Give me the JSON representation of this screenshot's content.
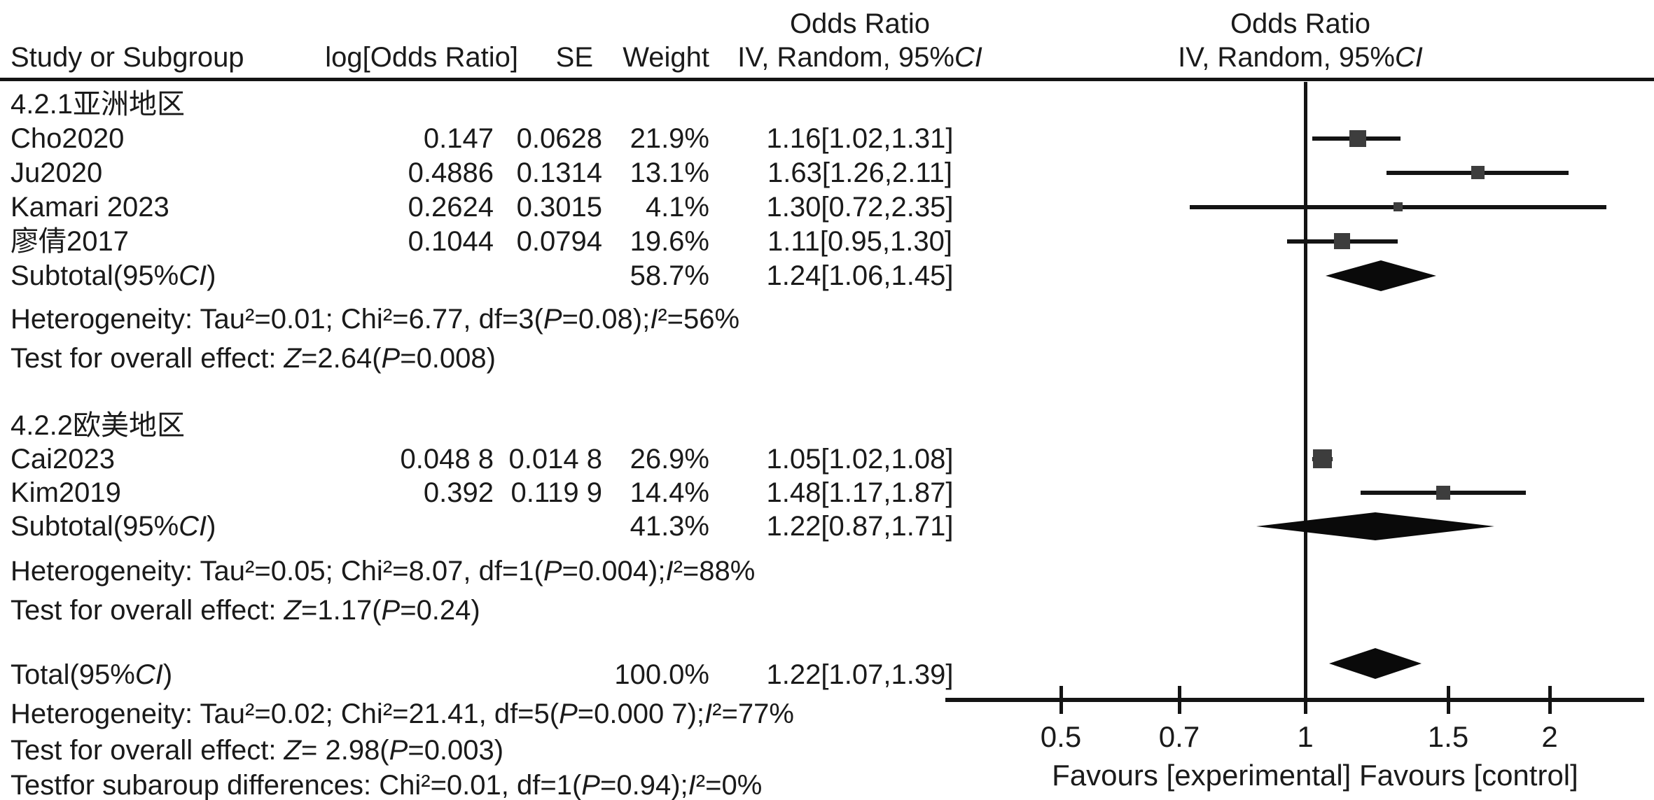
{
  "header": {
    "study_col": "Study or Subgroup",
    "logor_col": "log[Odds Ratio]",
    "se_col": "SE",
    "weight_col": "Weight",
    "or_text_title": "Odds Ratio",
    "or_text_sub": "IV, Random, 95%CI",
    "or_plot_title": "Odds Ratio",
    "or_plot_sub": "IV, Random, 95%CI"
  },
  "table": {
    "sections": [
      {
        "label": "4.2.1亚洲地区",
        "studies": [
          {
            "study": "Cho2020",
            "logor": "0.147",
            "se": "0.0628",
            "weight": "21.9%",
            "ci": "1.16[1.02,1.31]"
          },
          {
            "study": "Ju2020",
            "logor": "0.4886",
            "se": "0.1314",
            "weight": "13.1%",
            "ci": "1.63[1.26,2.11]"
          },
          {
            "study": "Kamari 2023",
            "logor": "0.2624",
            "se": "0.3015",
            "weight": "4.1%",
            "ci": "1.30[0.72,2.35]"
          },
          {
            "study": "廖倩2017",
            "logor": "0.1044",
            "se": "0.0794",
            "weight": "19.6%",
            "ci": "1.11[0.95,1.30]"
          }
        ],
        "subtotal_label": "Subtotal(95%CI)",
        "subtotal_weight": "58.7%",
        "subtotal_ci": "1.24[1.06,1.45]",
        "heterogeneity": "Heterogeneity: Tau²=0.01; Chi²=6.77, df=3(P=0.08);I²=56%",
        "overall_test": "Test for overall effect: Z=2.64(P=0.008)"
      },
      {
        "label": "4.2.2欧美地区",
        "studies": [
          {
            "study": "Cai2023",
            "logor": "0.048 8",
            "se": "0.014 8",
            "weight": "26.9%",
            "ci": "1.05[1.02,1.08]"
          },
          {
            "study": "Kim2019",
            "logor": "0.392",
            "se": "0.119 9",
            "weight": "14.4%",
            "ci": "1.48[1.17,1.87]"
          }
        ],
        "subtotal_label": "Subtotal(95%CI)",
        "subtotal_weight": "41.3%",
        "subtotal_ci": "1.22[0.87,1.71]",
        "heterogeneity": "Heterogeneity: Tau²=0.05; Chi²=8.07, df=1(P=0.004);I²=88%",
        "overall_test": "Test for overall effect: Z=1.17(P=0.24)"
      }
    ],
    "total_label": "Total(95%CI)",
    "total_weight": "100.0%",
    "total_ci": "1.22[1.07,1.39]",
    "total_heterogeneity": "Heterogeneity: Tau²=0.02; Chi²=21.41, df=5(P=0.000 7);I²=77%",
    "total_overall_test": "Test for overall effect: Z= 2.98(P=0.003)",
    "subgroup_test": "Testfor subaroup differences: Chi²=0.01, df=1(P=0.94);I²=0%"
  },
  "chart_data": {
    "type": "forest",
    "x_scale": "log",
    "null_line": 1,
    "x_ticks": [
      {
        "value": 0.5,
        "label": "0.5"
      },
      {
        "value": 0.7,
        "label": "0.7"
      },
      {
        "value": 1,
        "label": "1"
      },
      {
        "value": 1.5,
        "label": "1.5"
      },
      {
        "value": 2,
        "label": "2"
      }
    ],
    "x_axis_label": "Favours [experimental] Favours [control]",
    "studies": [
      {
        "name": "Cho2020",
        "or": 1.16,
        "ci_low": 1.02,
        "ci_high": 1.31,
        "weight_pct": 21.9
      },
      {
        "name": "Ju2020",
        "or": 1.63,
        "ci_low": 1.26,
        "ci_high": 2.11,
        "weight_pct": 13.1
      },
      {
        "name": "Kamari 2023",
        "or": 1.3,
        "ci_low": 0.72,
        "ci_high": 2.35,
        "weight_pct": 4.1
      },
      {
        "name": "廖倩2017",
        "or": 1.11,
        "ci_low": 0.95,
        "ci_high": 1.3,
        "weight_pct": 19.6
      },
      {
        "name": "Cai2023",
        "or": 1.05,
        "ci_low": 1.02,
        "ci_high": 1.08,
        "weight_pct": 26.9
      },
      {
        "name": "Kim2019",
        "or": 1.48,
        "ci_low": 1.17,
        "ci_high": 1.87,
        "weight_pct": 14.4
      }
    ],
    "pooled": [
      {
        "name": "Subtotal 4.2.1",
        "or": 1.24,
        "ci_low": 1.06,
        "ci_high": 1.45
      },
      {
        "name": "Subtotal 4.2.2",
        "or": 1.22,
        "ci_low": 0.87,
        "ci_high": 1.71
      },
      {
        "name": "Total",
        "or": 1.22,
        "ci_low": 1.07,
        "ci_high": 1.39
      }
    ],
    "colors": {
      "square": "#3d3d3d",
      "line": "#141414",
      "diamond": "#0a0a0a",
      "text": "#1a1a1a"
    }
  }
}
